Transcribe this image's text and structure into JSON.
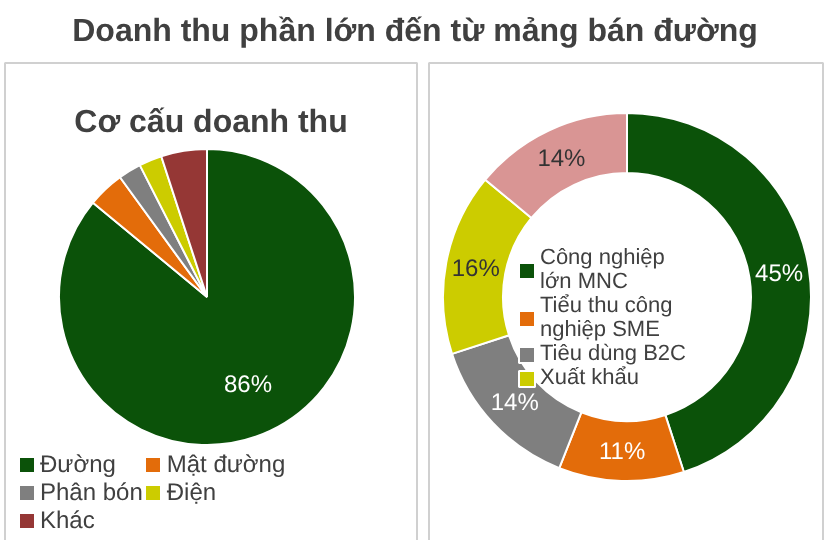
{
  "chart_data": [
    {
      "type": "pie",
      "title": "Doanh thu phần lớn đến từ mảng bán đường",
      "subtitle": "Cơ cấu doanh thu",
      "categories": [
        "Đường",
        "Mật đường",
        "Phân bón",
        "Điện",
        "Khác"
      ],
      "values": [
        86,
        4,
        2.5,
        2.5,
        5
      ],
      "colors": [
        "#0b5209",
        "#e36c0a",
        "#7f7f7f",
        "#cccc00",
        "#953735"
      ],
      "value_labels": [
        "86%",
        null,
        null,
        null,
        null
      ],
      "legend": "bottom"
    },
    {
      "type": "donut",
      "categories": [
        "Công nghiệp lớn MNC",
        "Tiểu thu công nghiệp SME",
        "Tiêu dùng B2C",
        "Xuất khẩu",
        null
      ],
      "values": [
        45,
        11,
        14,
        16,
        14
      ],
      "colors": [
        "#0b5209",
        "#e36c0a",
        "#7f7f7f",
        "#cccc00",
        "#d99594"
      ],
      "value_labels": [
        "45%",
        "11%",
        "14%",
        "16%",
        "14%"
      ],
      "legend": "center"
    }
  ]
}
